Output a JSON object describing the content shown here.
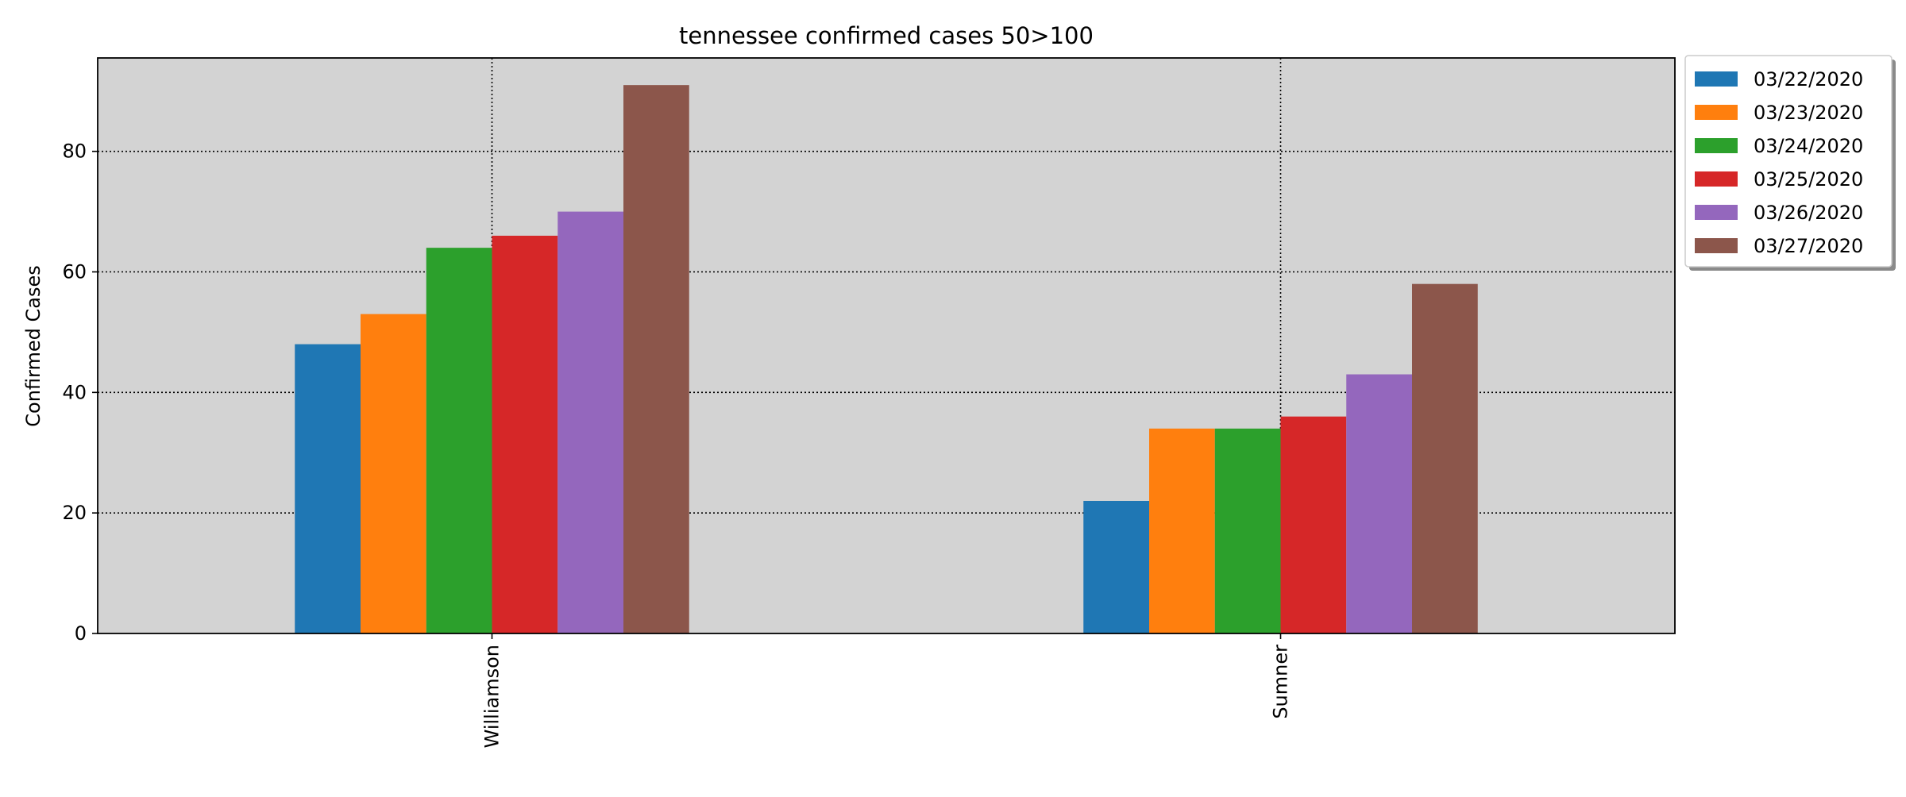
{
  "chart_data": {
    "type": "bar",
    "title": "tennessee confirmed cases 50>100",
    "xlabel": "",
    "ylabel": "Confirmed Cases",
    "categories": [
      "Williamson",
      "Sumner"
    ],
    "series": [
      {
        "name": "03/22/2020",
        "color": "#1f77b4",
        "values": [
          48,
          22
        ]
      },
      {
        "name": "03/23/2020",
        "color": "#ff7f0e",
        "values": [
          53,
          34
        ]
      },
      {
        "name": "03/24/2020",
        "color": "#2ca02c",
        "values": [
          64,
          34
        ]
      },
      {
        "name": "03/25/2020",
        "color": "#d62728",
        "values": [
          66,
          36
        ]
      },
      {
        "name": "03/26/2020",
        "color": "#9467bd",
        "values": [
          70,
          43
        ]
      },
      {
        "name": "03/27/2020",
        "color": "#8c564b",
        "values": [
          91,
          58
        ]
      }
    ],
    "ylim": [
      0,
      95.5
    ],
    "yticks": [
      0,
      20,
      40,
      60,
      80
    ],
    "grid": true,
    "grid_style": "dotted",
    "plot_background": "#d3d3d3",
    "legend_position": "outside-top-right",
    "xtick_rotation": "vertical"
  }
}
